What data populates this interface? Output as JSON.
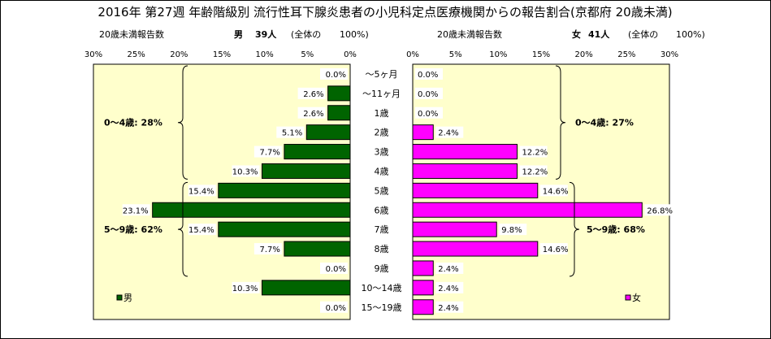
{
  "title": "2016年 第27週 年齢階級別 流行性耳下腺炎患者の小児科定点医療機関からの報告割合(京都府 20歳未満)",
  "male_header": {
    "label": "20歳未満報告数",
    "sex": "男",
    "count": "39人",
    "total_note": "(全体の",
    "total_pct": "100%)"
  },
  "female_header": {
    "label": "20歳未満報告数",
    "sex": "女",
    "count": "41人",
    "total_note": "(全体の",
    "total_pct": "100%)"
  },
  "colors": {
    "male": "#006400",
    "female": "#ff00ff",
    "panel_bg": "#ffffcc"
  },
  "chart_data": {
    "type": "bar",
    "orientation": "horizontal-butterfly",
    "categories": [
      "～5ヶ月",
      "～11ヶ月",
      "1歳",
      "2歳",
      "3歳",
      "4歳",
      "5歳",
      "6歳",
      "7歳",
      "8歳",
      "9歳",
      "10～14歳",
      "15～19歳"
    ],
    "series": [
      {
        "name": "男",
        "color": "#006400",
        "values": [
          0.0,
          2.6,
          2.6,
          5.1,
          7.7,
          10.3,
          15.4,
          23.1,
          15.4,
          7.7,
          0.0,
          10.3,
          0.0
        ]
      },
      {
        "name": "女",
        "color": "#ff00ff",
        "values": [
          0.0,
          0.0,
          0.0,
          2.4,
          12.2,
          12.2,
          14.6,
          26.8,
          9.8,
          14.6,
          2.4,
          2.4,
          2.4
        ]
      }
    ],
    "value_labels": {
      "male": [
        "0.0%",
        "2.6%",
        "2.6%",
        "5.1%",
        "7.7%",
        "10.3%",
        "15.4%",
        "23.1%",
        "15.4%",
        "7.7%",
        "0.0%",
        "10.3%",
        "0.0%"
      ],
      "female": [
        "0.0%",
        "0.0%",
        "0.0%",
        "2.4%",
        "12.2%",
        "12.2%",
        "14.6%",
        "26.8%",
        "9.8%",
        "14.6%",
        "2.4%",
        "2.4%",
        "2.4%"
      ]
    },
    "male_ticks": [
      "30%",
      "25%",
      "20%",
      "15%",
      "10%",
      "5%",
      "0%"
    ],
    "female_ticks": [
      "0%",
      "5%",
      "10%",
      "15%",
      "20%",
      "25%",
      "30%"
    ],
    "xlim": [
      0,
      30
    ],
    "groups": {
      "male": [
        {
          "label": "0～4歳: 28%",
          "from": 0,
          "to": 5
        },
        {
          "label": "5～9歳: 62%",
          "from": 6,
          "to": 10
        }
      ],
      "female": [
        {
          "label": "0～4歳: 27%",
          "from": 0,
          "to": 5
        },
        {
          "label": "5～9歳: 68%",
          "from": 6,
          "to": 10
        }
      ]
    },
    "legend": {
      "male": "男",
      "female": "女",
      "placement": "bottom"
    }
  }
}
